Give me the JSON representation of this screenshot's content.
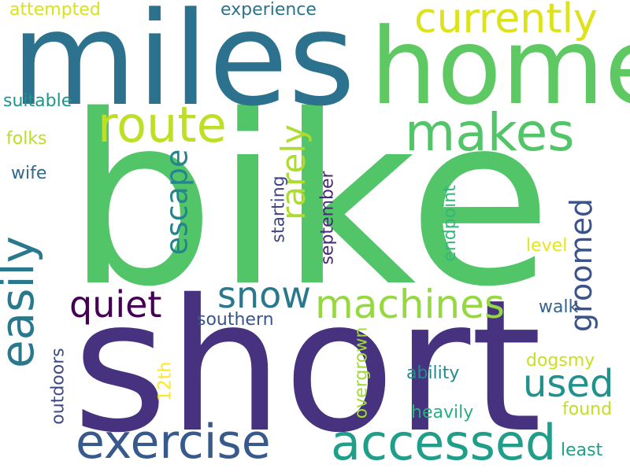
{
  "words": {
    "bike": {
      "text": "bike",
      "color": "#52c569"
    },
    "short": {
      "text": "short",
      "color": "#46327e"
    },
    "miles": {
      "text": "miles",
      "color": "#2c728e"
    },
    "home": {
      "text": "home",
      "color": "#5ec962"
    },
    "currently": {
      "text": "currently",
      "color": "#dde318"
    },
    "route": {
      "text": "route",
      "color": "#bddf26"
    },
    "makes": {
      "text": "makes",
      "color": "#52c569"
    },
    "rarely": {
      "text": "rarely",
      "color": "#addc30"
    },
    "easily": {
      "text": "easily",
      "color": "#2a788e"
    },
    "escape": {
      "text": "escape",
      "color": "#25858e"
    },
    "groomed": {
      "text": "groomed",
      "color": "#3b528b"
    },
    "quiet": {
      "text": "quiet",
      "color": "#440154"
    },
    "snow": {
      "text": "snow",
      "color": "#2a788e"
    },
    "machines": {
      "text": "machines",
      "color": "#95d840"
    },
    "used": {
      "text": "used",
      "color": "#21918c"
    },
    "exercise": {
      "text": "exercise",
      "color": "#38598c"
    },
    "accessed": {
      "text": "accessed",
      "color": "#1f9e89"
    },
    "attempted": {
      "text": "attempted",
      "color": "#d8e219"
    },
    "experience": {
      "text": "experience",
      "color": "#2c728e"
    },
    "suitable": {
      "text": "suitable",
      "color": "#1f968b"
    },
    "folks": {
      "text": "folks",
      "color": "#bade28"
    },
    "wife": {
      "text": "wife",
      "color": "#31688e"
    },
    "starting": {
      "text": "starting",
      "color": "#404688"
    },
    "september": {
      "text": "september",
      "color": "#482878"
    },
    "endpoint": {
      "text": "endpoint",
      "color": "#35b779"
    },
    "level": {
      "text": "level",
      "color": "#e5e419"
    },
    "walk": {
      "text": "walk",
      "color": "#32648e"
    },
    "southern": {
      "text": "southern",
      "color": "#39568c"
    },
    "twelfth": {
      "text": "12th",
      "color": "#fde725"
    },
    "overgrown": {
      "text": "overgrown",
      "color": "#a0da39"
    },
    "dogsmy": {
      "text": "dogsmy",
      "color": "#c8e020"
    },
    "ability": {
      "text": "ability",
      "color": "#228c8d"
    },
    "outdoors": {
      "text": "outdoors",
      "color": "#3e4a89"
    },
    "heavily": {
      "text": "heavily",
      "color": "#29af7f"
    },
    "found": {
      "text": "found",
      "color": "#c2df23"
    },
    "least": {
      "text": "least",
      "color": "#1fa187"
    }
  }
}
